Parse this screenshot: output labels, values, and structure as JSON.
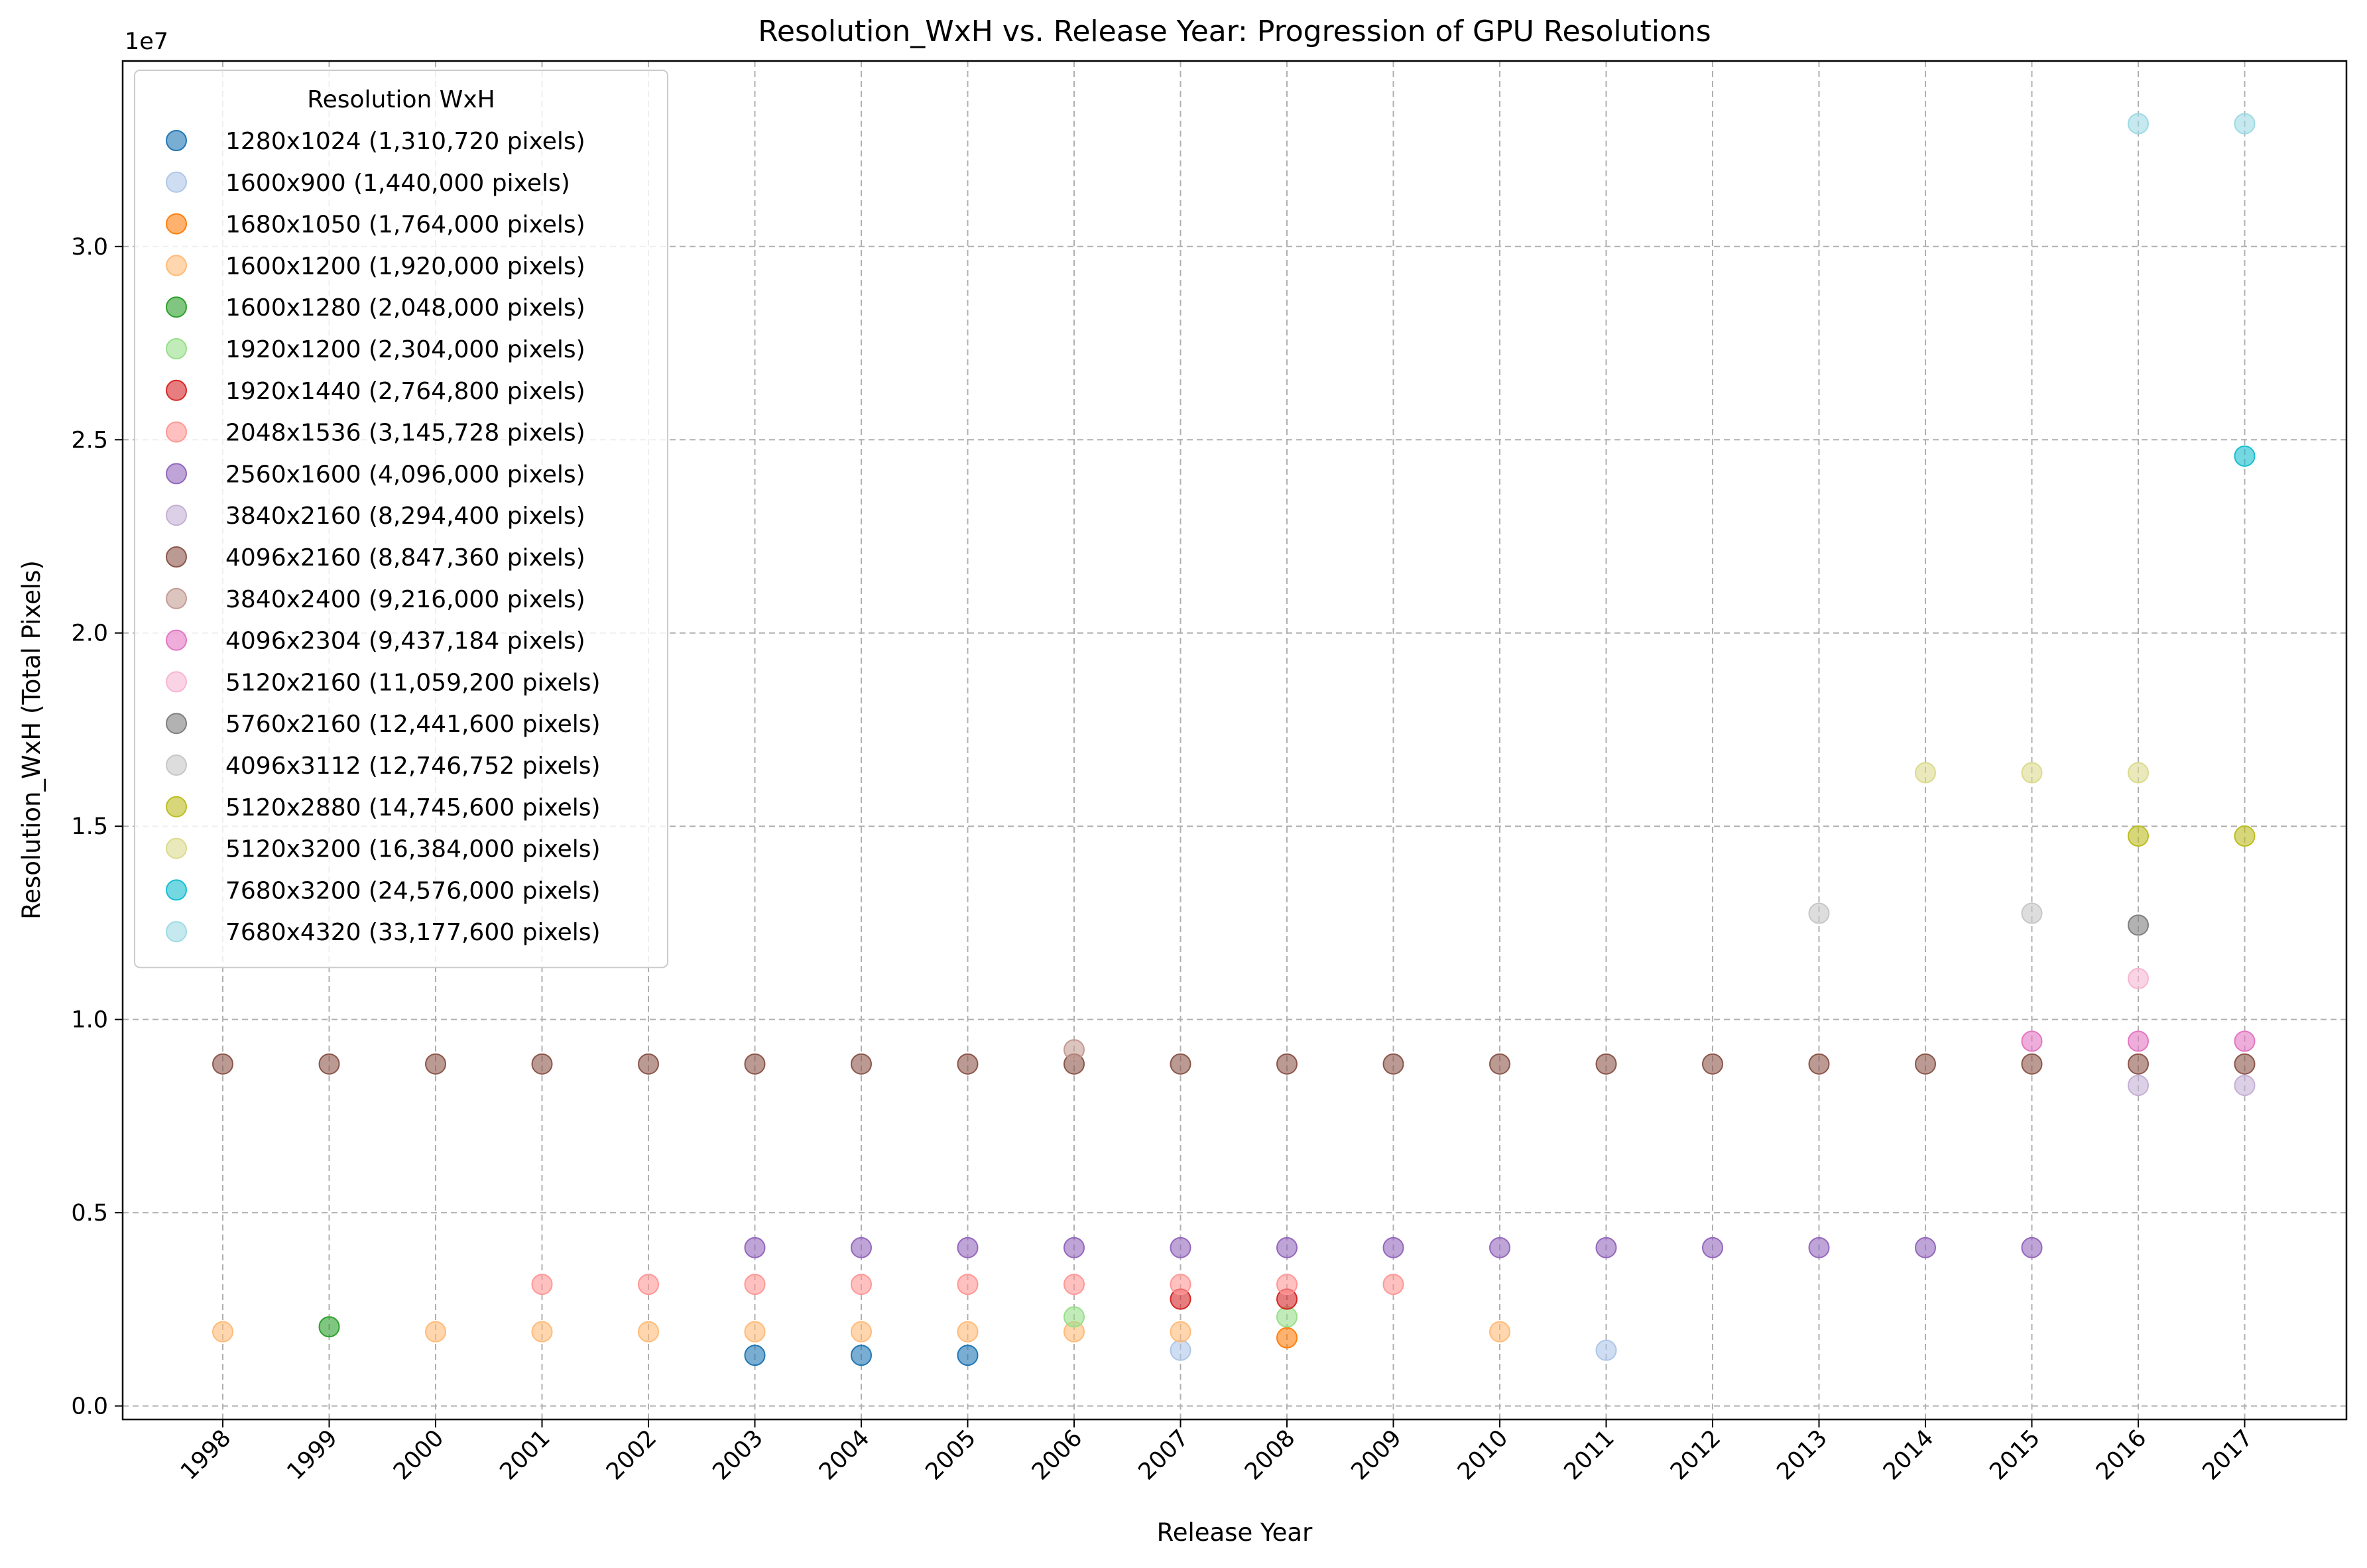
{
  "chart_data": {
    "type": "scatter",
    "title": "Resolution_WxH vs. Release Year: Progression of GPU Resolutions",
    "xlabel": "Release Year",
    "ylabel": "Resolution_WxH (Total Pixels)",
    "y_offset_label": "1e7",
    "x_categories": [
      "1998",
      "1999",
      "2000",
      "2001",
      "2002",
      "2003",
      "2004",
      "2005",
      "2006",
      "2007",
      "2008",
      "2009",
      "2010",
      "2011",
      "2012",
      "2013",
      "2014",
      "2015",
      "2016",
      "2017"
    ],
    "y_ticks": [
      0.0,
      0.5,
      1.0,
      1.5,
      2.0,
      2.5,
      3.0
    ],
    "y_tick_labels": [
      "0.0",
      "0.5",
      "1.0",
      "1.5",
      "2.0",
      "2.5",
      "3.0"
    ],
    "y_tick_scale": 10000000,
    "ylim": [
      -350000,
      34800000
    ],
    "grid": true,
    "legend": {
      "title": "Resolution WxH",
      "placement": "top-left"
    },
    "series": [
      {
        "name": "1280x1024 (1,310,720 pixels)",
        "value": 1310720,
        "color": "#1f77b4",
        "x": [
          "2003",
          "2004",
          "2005"
        ]
      },
      {
        "name": "1600x900 (1,440,000 pixels)",
        "value": 1440000,
        "color": "#aec7e8",
        "x": [
          "2007",
          "2011"
        ]
      },
      {
        "name": "1680x1050 (1,764,000 pixels)",
        "value": 1764000,
        "color": "#ff7f0e",
        "x": [
          "2008"
        ]
      },
      {
        "name": "1600x1200 (1,920,000 pixels)",
        "value": 1920000,
        "color": "#ffbb78",
        "x": [
          "1998",
          "2000",
          "2001",
          "2002",
          "2003",
          "2004",
          "2005",
          "2006",
          "2007",
          "2010"
        ]
      },
      {
        "name": "1600x1280 (2,048,000 pixels)",
        "value": 2048000,
        "color": "#2ca02c",
        "x": [
          "1999"
        ]
      },
      {
        "name": "1920x1200 (2,304,000 pixels)",
        "value": 2304000,
        "color": "#98df8a",
        "x": [
          "2006",
          "2008"
        ]
      },
      {
        "name": "1920x1440 (2,764,800 pixels)",
        "value": 2764800,
        "color": "#d62728",
        "x": [
          "2007",
          "2008"
        ]
      },
      {
        "name": "2048x1536 (3,145,728 pixels)",
        "value": 3145728,
        "color": "#ff9896",
        "x": [
          "2001",
          "2002",
          "2003",
          "2004",
          "2005",
          "2006",
          "2007",
          "2008",
          "2009"
        ]
      },
      {
        "name": "2560x1600 (4,096,000 pixels)",
        "value": 4096000,
        "color": "#9467bd",
        "x": [
          "2003",
          "2004",
          "2005",
          "2006",
          "2007",
          "2008",
          "2009",
          "2010",
          "2011",
          "2012",
          "2013",
          "2014",
          "2015"
        ]
      },
      {
        "name": "3840x2160 (8,294,400 pixels)",
        "value": 8294400,
        "color": "#c5b0d5",
        "x": [
          "2016",
          "2017"
        ]
      },
      {
        "name": "4096x2160 (8,847,360 pixels)",
        "value": 8847360,
        "color": "#8c564b",
        "x": [
          "1998",
          "1999",
          "2000",
          "2001",
          "2002",
          "2003",
          "2004",
          "2005",
          "2006",
          "2007",
          "2008",
          "2009",
          "2010",
          "2011",
          "2012",
          "2013",
          "2014",
          "2015",
          "2016",
          "2017"
        ]
      },
      {
        "name": "3840x2400 (9,216,000 pixels)",
        "value": 9216000,
        "color": "#c49c94",
        "x": [
          "2006"
        ]
      },
      {
        "name": "4096x2304 (9,437,184 pixels)",
        "value": 9437184,
        "color": "#e377c2",
        "x": [
          "2015",
          "2016",
          "2017"
        ]
      },
      {
        "name": "5120x2160 (11,059,200 pixels)",
        "value": 11059200,
        "color": "#f7b6d2",
        "x": [
          "2016"
        ]
      },
      {
        "name": "5760x2160 (12,441,600 pixels)",
        "value": 12441600,
        "color": "#7f7f7f",
        "x": [
          "2016"
        ]
      },
      {
        "name": "4096x3112 (12,746,752 pixels)",
        "value": 12746752,
        "color": "#c7c7c7",
        "x": [
          "2013",
          "2015"
        ]
      },
      {
        "name": "5120x2880 (14,745,600 pixels)",
        "value": 14745600,
        "color": "#bcbd22",
        "x": [
          "2016",
          "2017"
        ]
      },
      {
        "name": "5120x3200 (16,384,000 pixels)",
        "value": 16384000,
        "color": "#dbdb8d",
        "x": [
          "2014",
          "2015",
          "2016"
        ]
      },
      {
        "name": "7680x3200 (24,576,000 pixels)",
        "value": 24576000,
        "color": "#17becf",
        "x": [
          "2017"
        ]
      },
      {
        "name": "7680x4320 (33,177,600 pixels)",
        "value": 33177600,
        "color": "#9edae5",
        "x": [
          "2016",
          "2017"
        ]
      }
    ]
  }
}
